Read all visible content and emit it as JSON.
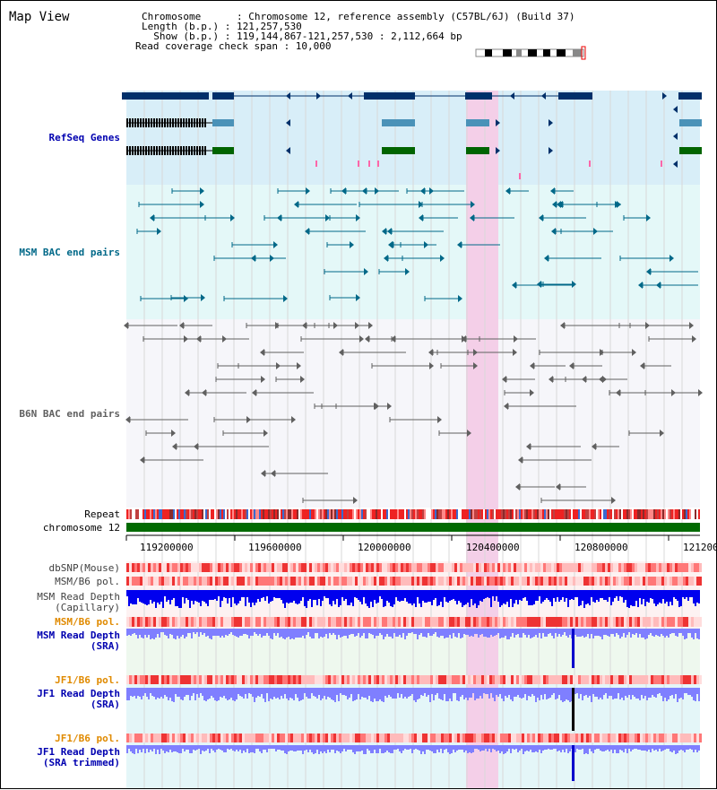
{
  "title": "Map View",
  "info": {
    "line1": "Chromosome      : Chromosome 12, reference assembly (C57BL/6J) (Build 37)",
    "line2": "Length (b.p.) : 121,257,530",
    "line3": "  Show (b.p.) : 119,144,867-121,257,530 : 2,112,664 bp",
    "line4": "Read coverage check span : 10,000"
  },
  "tracks": {
    "refseq": "RefSeq Genes",
    "msm_bac": "MSM BAC end pairs",
    "b6n_bac": "B6N BAC end pairs",
    "repeat": "Repeat",
    "chromosome": "chromosome 12",
    "dbsnp": "dbSNP(Mouse)",
    "msm_b6_pol_1": "MSM/B6 pol.",
    "msm_depth_cap_1": "MSM Read Depth",
    "msm_depth_cap_2": "(Capillary)",
    "msm_b6_pol_2": "MSM/B6 pol.",
    "msm_depth_sra_1": "MSM Read Depth",
    "msm_depth_sra_2": "(SRA)",
    "jf1_b6_pol_1": "JF1/B6 pol.",
    "jf1_depth_sra_1": "JF1 Read Depth",
    "jf1_depth_sra_2": "(SRA)",
    "jf1_b6_pol_2": "JF1/B6 pol.",
    "jf1_depth_trim_1": "JF1 Read Depth",
    "jf1_depth_trim_2": "(SRA trimmed)"
  },
  "axis": {
    "ticks": [
      "119200000",
      "119600000",
      "120000000",
      "120400000",
      "120800000",
      "121200000"
    ]
  },
  "colors": {
    "refseq_bg": "#d8eef8",
    "bac_bg": "#e4f8f8",
    "b6n_bg": "#f6f6fa",
    "highlight": "#f4cfe8",
    "dark_gene": "#00306a",
    "mid_gene": "#4a92b8",
    "green_gene": "#006400",
    "msm_bac_line": "#006888",
    "b6n_bac_line": "#606060",
    "label_blue": "#00008b",
    "label_orange": "#ff8c00",
    "depth_blue": "#0000ee",
    "depth_light": "#7f7fff"
  }
}
